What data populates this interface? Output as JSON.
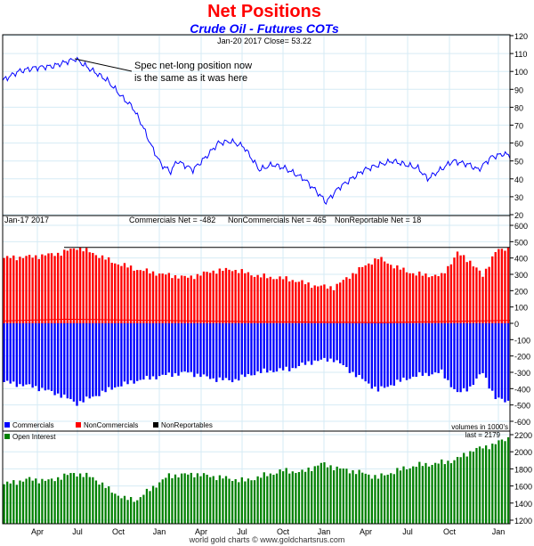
{
  "chart_data": {
    "title": "Net Positions",
    "subtitle": "Crude Oil - Futures COTs",
    "footer": "world gold charts © www.goldchartsrus.com",
    "x_ticks": [
      "Apr",
      "Jul",
      "Oct",
      "Jan",
      "Apr",
      "Jul",
      "Oct",
      "Jan",
      "Apr",
      "Jul",
      "Oct",
      "Jan"
    ],
    "weeks": 160,
    "panels": [
      {
        "type": "line",
        "header": "Jan-20  2017   Close= 53.22",
        "ylim": [
          20,
          120
        ],
        "yticks": [
          20,
          30,
          40,
          50,
          60,
          70,
          80,
          90,
          100,
          110,
          120
        ],
        "annotation": "Spec net-long position now\nis the same as it was here",
        "series": [
          {
            "name": "Crude Oil close",
            "color": "#0000ff",
            "keyframes": [
              [
                0,
                95
              ],
              [
                5,
                100
              ],
              [
                10,
                102
              ],
              [
                16,
                103
              ],
              [
                23,
                107
              ],
              [
                27,
                102
              ],
              [
                33,
                95
              ],
              [
                38,
                85
              ],
              [
                41,
                80
              ],
              [
                44,
                70
              ],
              [
                47,
                58
              ],
              [
                50,
                48
              ],
              [
                53,
                44
              ],
              [
                55,
                50
              ],
              [
                60,
                45
              ],
              [
                64,
                52
              ],
              [
                68,
                60
              ],
              [
                72,
                61
              ],
              [
                76,
                58
              ],
              [
                81,
                45
              ],
              [
                85,
                48
              ],
              [
                89,
                46
              ],
              [
                95,
                40
              ],
              [
                99,
                33
              ],
              [
                102,
                27
              ],
              [
                106,
                35
              ],
              [
                110,
                40
              ],
              [
                114,
                45
              ],
              [
                119,
                48
              ],
              [
                123,
                50
              ],
              [
                127,
                48
              ],
              [
                131,
                46
              ],
              [
                134,
                40
              ],
              [
                138,
                45
              ],
              [
                142,
                50
              ],
              [
                147,
                48
              ],
              [
                150,
                45
              ],
              [
                154,
                52
              ],
              [
                158,
                54
              ],
              [
                160,
                53
              ]
            ]
          }
        ]
      },
      {
        "type": "bar",
        "header_date": "Jan-17  2017",
        "stats": [
          "Commercials Net = -482",
          "NonCommercials Net = 465",
          "NonReportable Net = 18"
        ],
        "ylim": [
          -600,
          600
        ],
        "yticks": [
          -600,
          -500,
          -400,
          -300,
          -200,
          -100,
          0,
          100,
          200,
          300,
          400,
          500,
          600
        ],
        "reference_level": 465,
        "note": "volumes in 1000's",
        "legend": [
          {
            "name": "Commercials",
            "color": "#0000ff"
          },
          {
            "name": "NonCommercials",
            "color": "#ff0000"
          },
          {
            "name": "NonReportables",
            "color": "#000000"
          }
        ],
        "series": [
          {
            "name": "NonCommercials",
            "color": "#ff0000",
            "keyframes": [
              [
                0,
                400
              ],
              [
                10,
                410
              ],
              [
                18,
                430
              ],
              [
                23,
                465
              ],
              [
                28,
                430
              ],
              [
                35,
                370
              ],
              [
                42,
                330
              ],
              [
                50,
                300
              ],
              [
                58,
                280
              ],
              [
                66,
                320
              ],
              [
                72,
                330
              ],
              [
                80,
                290
              ],
              [
                90,
                270
              ],
              [
                98,
                230
              ],
              [
                104,
                220
              ],
              [
                112,
                330
              ],
              [
                118,
                400
              ],
              [
                124,
                340
              ],
              [
                130,
                300
              ],
              [
                138,
                290
              ],
              [
                143,
                430
              ],
              [
                147,
                380
              ],
              [
                151,
                290
              ],
              [
                155,
                440
              ],
              [
                160,
                465
              ]
            ]
          },
          {
            "name": "Commercials",
            "color": "#0000ff",
            "keyframes": [
              [
                0,
                -360
              ],
              [
                10,
                -390
              ],
              [
                18,
                -440
              ],
              [
                23,
                -490
              ],
              [
                28,
                -450
              ],
              [
                35,
                -390
              ],
              [
                42,
                -350
              ],
              [
                50,
                -320
              ],
              [
                58,
                -300
              ],
              [
                66,
                -340
              ],
              [
                72,
                -350
              ],
              [
                80,
                -300
              ],
              [
                90,
                -280
              ],
              [
                98,
                -230
              ],
              [
                104,
                -220
              ],
              [
                112,
                -330
              ],
              [
                118,
                -410
              ],
              [
                124,
                -360
              ],
              [
                130,
                -320
              ],
              [
                138,
                -300
              ],
              [
                143,
                -430
              ],
              [
                147,
                -390
              ],
              [
                151,
                -300
              ],
              [
                155,
                -460
              ],
              [
                160,
                -482
              ]
            ]
          },
          {
            "name": "NonReportables",
            "color": "#000000",
            "keyframes": [
              [
                0,
                15
              ],
              [
                20,
                25
              ],
              [
                40,
                20
              ],
              [
                80,
                10
              ],
              [
                120,
                5
              ],
              [
                160,
                18
              ]
            ]
          }
        ]
      },
      {
        "type": "bar",
        "label": "Open Interest",
        "last": "last = 2179",
        "ylim": [
          1200,
          2200
        ],
        "yticks": [
          1200,
          1400,
          1600,
          1800,
          2000,
          2200
        ],
        "series": [
          {
            "name": "Open Interest",
            "color": "#008000",
            "keyframes": [
              [
                0,
                1620
              ],
              [
                8,
                1680
              ],
              [
                14,
                1660
              ],
              [
                22,
                1750
              ],
              [
                28,
                1700
              ],
              [
                33,
                1560
              ],
              [
                38,
                1450
              ],
              [
                42,
                1440
              ],
              [
                46,
                1560
              ],
              [
                52,
                1720
              ],
              [
                60,
                1740
              ],
              [
                68,
                1700
              ],
              [
                76,
                1660
              ],
              [
                82,
                1720
              ],
              [
                88,
                1780
              ],
              [
                94,
                1760
              ],
              [
                100,
                1860
              ],
              [
                106,
                1800
              ],
              [
                112,
                1760
              ],
              [
                118,
                1700
              ],
              [
                124,
                1780
              ],
              [
                130,
                1840
              ],
              [
                136,
                1860
              ],
              [
                142,
                1900
              ],
              [
                148,
                2020
              ],
              [
                154,
                2080
              ],
              [
                160,
                2179
              ]
            ]
          }
        ]
      }
    ]
  }
}
